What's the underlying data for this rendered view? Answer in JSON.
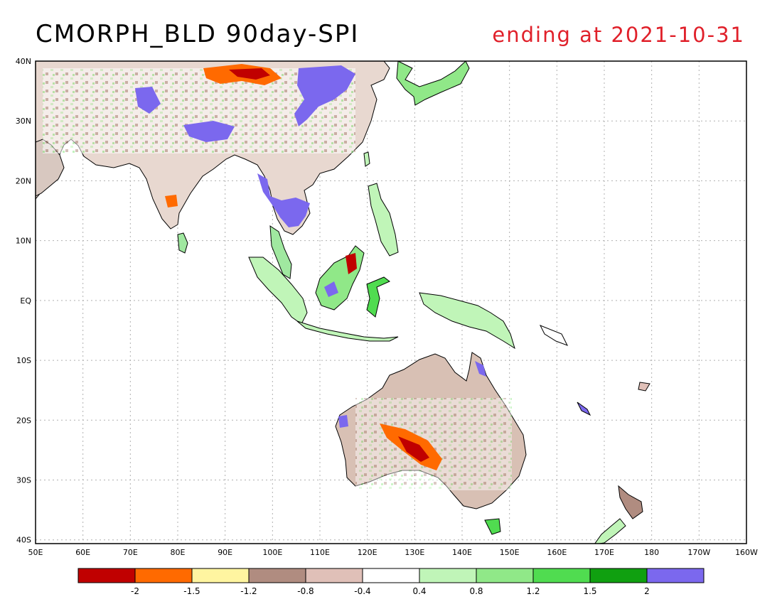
{
  "title": "CMORPH_BLD 90day-SPI",
  "subtitle": "ending at 2021-10-31",
  "lat_labels": [
    "40N",
    "30N",
    "20N",
    "10N",
    "EQ",
    "10S",
    "20S",
    "30S",
    "40S"
  ],
  "lon_labels": [
    "50E",
    "60E",
    "70E",
    "80E",
    "90E",
    "100E",
    "110E",
    "120E",
    "130E",
    "140E",
    "150E",
    "160E",
    "170E",
    "180",
    "170W",
    "160W"
  ],
  "legend": {
    "colors": [
      "#c00000",
      "#ff6a00",
      "#fff5a0",
      "#b08c80",
      "#e0c0b8",
      "#ffffff",
      "#c0f5b8",
      "#90e888",
      "#50dc50",
      "#10a010",
      "#7b68ee"
    ],
    "labels": [
      "-2",
      "-1.5",
      "-1.2",
      "-0.8",
      "-0.4",
      "0.4",
      "0.8",
      "1.2",
      "1.5",
      "2"
    ]
  },
  "colors": {
    "title": "#000000",
    "subtitle": "#e0202a",
    "grid": "#b0b0b0"
  }
}
